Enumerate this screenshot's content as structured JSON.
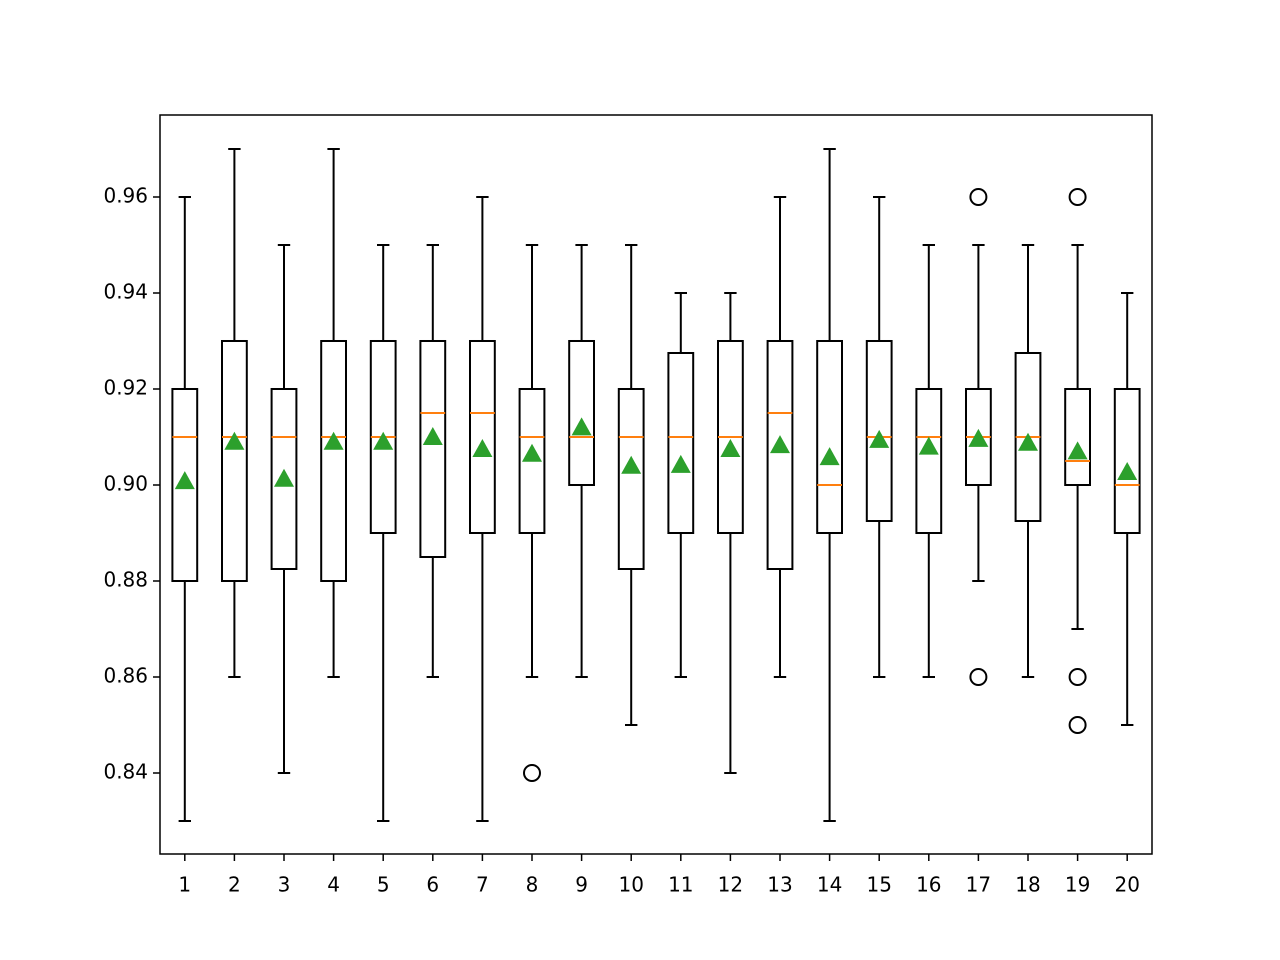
{
  "chart_data": {
    "type": "box",
    "categories": [
      "1",
      "2",
      "3",
      "4",
      "5",
      "6",
      "7",
      "8",
      "9",
      "10",
      "11",
      "12",
      "13",
      "14",
      "15",
      "16",
      "17",
      "18",
      "19",
      "20"
    ],
    "boxes": [
      {
        "whislo": 0.83,
        "q1": 0.88,
        "med": 0.91,
        "q3": 0.92,
        "whishi": 0.96,
        "mean": 0.9008,
        "fliers": []
      },
      {
        "whislo": 0.86,
        "q1": 0.88,
        "med": 0.91,
        "q3": 0.93,
        "whishi": 0.97,
        "mean": 0.909,
        "fliers": []
      },
      {
        "whislo": 0.84,
        "q1": 0.8825,
        "med": 0.91,
        "q3": 0.92,
        "whishi": 0.95,
        "mean": 0.9013,
        "fliers": []
      },
      {
        "whislo": 0.86,
        "q1": 0.88,
        "med": 0.91,
        "q3": 0.93,
        "whishi": 0.97,
        "mean": 0.909,
        "fliers": []
      },
      {
        "whislo": 0.83,
        "q1": 0.89,
        "med": 0.91,
        "q3": 0.93,
        "whishi": 0.95,
        "mean": 0.909,
        "fliers": []
      },
      {
        "whislo": 0.86,
        "q1": 0.885,
        "med": 0.915,
        "q3": 0.93,
        "whishi": 0.95,
        "mean": 0.91,
        "fliers": []
      },
      {
        "whislo": 0.83,
        "q1": 0.89,
        "med": 0.915,
        "q3": 0.93,
        "whishi": 0.96,
        "mean": 0.9075,
        "fliers": []
      },
      {
        "whislo": 0.86,
        "q1": 0.89,
        "med": 0.91,
        "q3": 0.92,
        "whishi": 0.95,
        "mean": 0.9065,
        "fliers": [
          0.84
        ]
      },
      {
        "whislo": 0.86,
        "q1": 0.9,
        "med": 0.91,
        "q3": 0.93,
        "whishi": 0.95,
        "mean": 0.912,
        "fliers": []
      },
      {
        "whislo": 0.85,
        "q1": 0.8825,
        "med": 0.91,
        "q3": 0.92,
        "whishi": 0.95,
        "mean": 0.904,
        "fliers": []
      },
      {
        "whislo": 0.86,
        "q1": 0.89,
        "med": 0.91,
        "q3": 0.9275,
        "whishi": 0.94,
        "mean": 0.9042,
        "fliers": []
      },
      {
        "whislo": 0.84,
        "q1": 0.89,
        "med": 0.91,
        "q3": 0.93,
        "whishi": 0.94,
        "mean": 0.9075,
        "fliers": []
      },
      {
        "whislo": 0.86,
        "q1": 0.8825,
        "med": 0.915,
        "q3": 0.93,
        "whishi": 0.96,
        "mean": 0.9083,
        "fliers": []
      },
      {
        "whislo": 0.83,
        "q1": 0.89,
        "med": 0.9,
        "q3": 0.93,
        "whishi": 0.97,
        "mean": 0.9058,
        "fliers": []
      },
      {
        "whislo": 0.86,
        "q1": 0.8925,
        "med": 0.91,
        "q3": 0.93,
        "whishi": 0.96,
        "mean": 0.9094,
        "fliers": []
      },
      {
        "whislo": 0.86,
        "q1": 0.89,
        "med": 0.91,
        "q3": 0.92,
        "whishi": 0.95,
        "mean": 0.908,
        "fliers": []
      },
      {
        "whislo": 0.88,
        "q1": 0.9,
        "med": 0.91,
        "q3": 0.92,
        "whishi": 0.95,
        "mean": 0.9096,
        "fliers": [
          0.96,
          0.86
        ]
      },
      {
        "whislo": 0.86,
        "q1": 0.8925,
        "med": 0.91,
        "q3": 0.9275,
        "whishi": 0.95,
        "mean": 0.9088,
        "fliers": []
      },
      {
        "whislo": 0.87,
        "q1": 0.9,
        "med": 0.905,
        "q3": 0.92,
        "whishi": 0.95,
        "mean": 0.907,
        "fliers": [
          0.96,
          0.86,
          0.85
        ]
      },
      {
        "whislo": 0.85,
        "q1": 0.89,
        "med": 0.9,
        "q3": 0.92,
        "whishi": 0.94,
        "mean": 0.9027,
        "fliers": []
      }
    ],
    "box_color": "#000000",
    "median_color": "#ff7f0e",
    "mean_color": "#2ca02c",
    "ylim": [
      0.823125,
      0.977083
    ],
    "yticks": [
      0.84,
      0.86,
      0.88,
      {
        "value": 0.9,
        "label": "0.90"
      },
      0.92,
      0.94,
      0.96
    ],
    "grid": false
  }
}
